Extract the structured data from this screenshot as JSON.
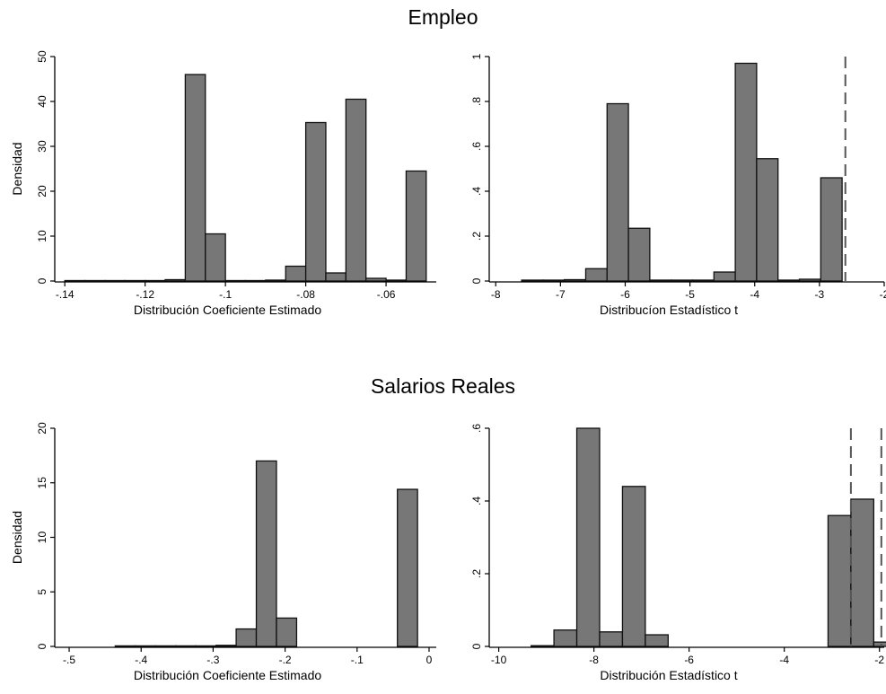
{
  "sections": [
    {
      "title": "Empleo"
    },
    {
      "title": "Salarios Reales"
    }
  ],
  "colors": {
    "bar_fill": "#777777",
    "bar_stroke": "#111111",
    "ref_line": "#555555",
    "axis": "#000000"
  },
  "chart_data": [
    {
      "type": "bar",
      "section": "Empleo",
      "xlabel": "Distribución Coeficiente Estimado",
      "ylabel": "Densidad",
      "xlim": [
        -0.1425,
        -0.0475
      ],
      "ylim": [
        0,
        50
      ],
      "xticks": [
        -0.14,
        -0.12,
        -0.1,
        -0.08,
        -0.06
      ],
      "xtick_labels": [
        "-.14",
        "-.12",
        "-.1",
        "-.08",
        "-.06"
      ],
      "yticks": [
        0,
        10,
        20,
        30,
        40,
        50
      ],
      "ytick_labels": [
        "0",
        "10",
        "20",
        "30",
        "40",
        "50"
      ],
      "bin_width": 0.005,
      "bins": [
        {
          "x": -0.14,
          "y": 0.1
        },
        {
          "x": -0.135,
          "y": 0.1
        },
        {
          "x": -0.13,
          "y": 0.1
        },
        {
          "x": -0.125,
          "y": 0.1
        },
        {
          "x": -0.12,
          "y": 0.1
        },
        {
          "x": -0.115,
          "y": 0.3
        },
        {
          "x": -0.11,
          "y": 46
        },
        {
          "x": -0.105,
          "y": 10.5
        },
        {
          "x": -0.1,
          "y": 0.1
        },
        {
          "x": -0.095,
          "y": 0.1
        },
        {
          "x": -0.09,
          "y": 0.2
        },
        {
          "x": -0.085,
          "y": 3.3
        },
        {
          "x": -0.08,
          "y": 35.3
        },
        {
          "x": -0.075,
          "y": 1.8
        },
        {
          "x": -0.07,
          "y": 40.5
        },
        {
          "x": -0.065,
          "y": 0.6
        },
        {
          "x": -0.06,
          "y": 0.2
        },
        {
          "x": -0.055,
          "y": 24.5
        }
      ],
      "reference_lines": []
    },
    {
      "type": "bar",
      "section": "Empleo",
      "xlabel": "Distribucíon Estadístico t",
      "ylabel": "",
      "xlim": [
        -8.1,
        -2.0
      ],
      "ylim": [
        0,
        1
      ],
      "xticks": [
        -8,
        -7,
        -6,
        -5,
        -4,
        -3,
        -2
      ],
      "xtick_labels": [
        "-8",
        "-7",
        "-6",
        "-5",
        "-4",
        "-3",
        "-2"
      ],
      "yticks": [
        0,
        0.2,
        0.4,
        0.6,
        0.8,
        1
      ],
      "ytick_labels": [
        "0",
        ".2",
        ".4",
        ".6",
        ".8",
        "1"
      ],
      "bin_width": 0.33,
      "bins": [
        {
          "x": -7.6,
          "y": 0.004
        },
        {
          "x": -7.27,
          "y": 0.004
        },
        {
          "x": -6.94,
          "y": 0.006
        },
        {
          "x": -6.61,
          "y": 0.055
        },
        {
          "x": -6.28,
          "y": 0.79
        },
        {
          "x": -5.95,
          "y": 0.235
        },
        {
          "x": -5.62,
          "y": 0.004
        },
        {
          "x": -5.29,
          "y": 0.004
        },
        {
          "x": -4.96,
          "y": 0.004
        },
        {
          "x": -4.63,
          "y": 0.04
        },
        {
          "x": -4.3,
          "y": 0.97
        },
        {
          "x": -3.97,
          "y": 0.545
        },
        {
          "x": -3.64,
          "y": 0.004
        },
        {
          "x": -3.31,
          "y": 0.008
        },
        {
          "x": -2.98,
          "y": 0.46
        }
      ],
      "reference_lines": [
        -2.6
      ]
    },
    {
      "type": "bar",
      "section": "Salarios Reales",
      "xlabel": "Distribución Coeficiente Estimado",
      "ylabel": "Densidad",
      "xlim": [
        -0.52,
        0.01
      ],
      "ylim": [
        0,
        20
      ],
      "xticks": [
        -0.5,
        -0.4,
        -0.3,
        -0.2,
        -0.1,
        0
      ],
      "xtick_labels": [
        "-.5",
        "-.4",
        "-.3",
        "-.2",
        "-.1",
        "0"
      ],
      "yticks": [
        0,
        5,
        10,
        15,
        20
      ],
      "ytick_labels": [
        "0",
        "5",
        "10",
        "15",
        "20"
      ],
      "bin_width": 0.028,
      "bins": [
        {
          "x": -0.436,
          "y": 0.05
        },
        {
          "x": -0.408,
          "y": 0.05
        },
        {
          "x": -0.38,
          "y": 0.05
        },
        {
          "x": -0.352,
          "y": 0.05
        },
        {
          "x": -0.324,
          "y": 0.05
        },
        {
          "x": -0.296,
          "y": 0.1
        },
        {
          "x": -0.268,
          "y": 1.6
        },
        {
          "x": -0.24,
          "y": 17
        },
        {
          "x": -0.212,
          "y": 2.6
        },
        {
          "x": -0.184,
          "y": 0
        },
        {
          "x": -0.156,
          "y": 0
        },
        {
          "x": -0.128,
          "y": 0
        },
        {
          "x": -0.1,
          "y": 0
        },
        {
          "x": -0.072,
          "y": 0
        },
        {
          "x": -0.044,
          "y": 14.4
        }
      ],
      "reference_lines": []
    },
    {
      "type": "bar",
      "section": "Salarios Reales",
      "xlabel": "Distribución Estadístico t",
      "ylabel": "",
      "xlim": [
        -10.2,
        -1.9
      ],
      "ylim": [
        0,
        0.6
      ],
      "xticks": [
        -10,
        -8,
        -6,
        -4,
        -2
      ],
      "xtick_labels": [
        "-10",
        "-8",
        "-6",
        "-4",
        "-2"
      ],
      "yticks": [
        0,
        0.2,
        0.4,
        0.6
      ],
      "ytick_labels": [
        "0",
        ".2",
        ".4",
        ".6"
      ],
      "bin_width": 0.48,
      "bins": [
        {
          "x": -9.32,
          "y": 0.002
        },
        {
          "x": -8.84,
          "y": 0.045
        },
        {
          "x": -8.36,
          "y": 0.6
        },
        {
          "x": -7.88,
          "y": 0.04
        },
        {
          "x": -7.4,
          "y": 0.44
        },
        {
          "x": -6.92,
          "y": 0.032
        },
        {
          "x": -6.44,
          "y": 0
        },
        {
          "x": -5.96,
          "y": 0
        },
        {
          "x": -5.48,
          "y": 0
        },
        {
          "x": -5.0,
          "y": 0
        },
        {
          "x": -4.52,
          "y": 0
        },
        {
          "x": -4.04,
          "y": 0
        },
        {
          "x": -3.56,
          "y": 0
        },
        {
          "x": -3.08,
          "y": 0.36
        },
        {
          "x": -2.6,
          "y": 0.405
        },
        {
          "x": -2.12,
          "y": 0.012
        }
      ],
      "reference_lines": [
        -2.6,
        -1.96
      ]
    }
  ]
}
